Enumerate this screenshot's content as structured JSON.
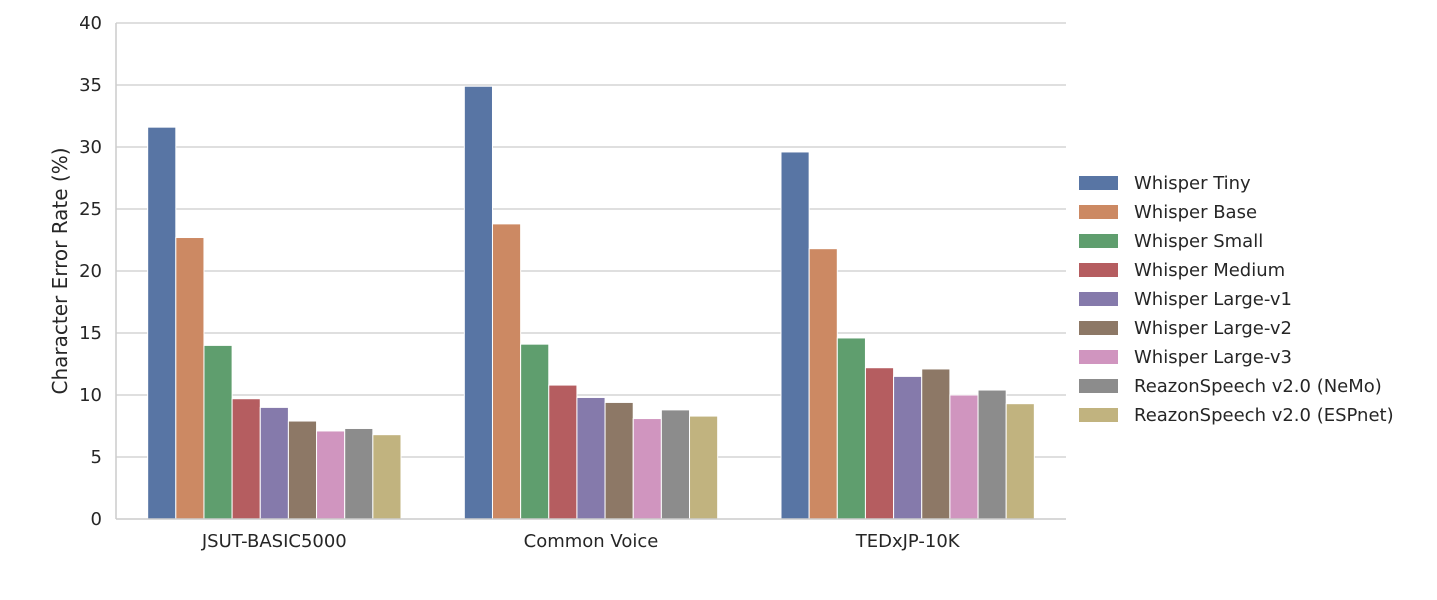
{
  "chart_data": {
    "type": "bar",
    "title": "",
    "xlabel": "",
    "ylabel": "Character Error Rate (%)",
    "ylim": [
      0,
      40
    ],
    "yticks": [
      0,
      5,
      10,
      15,
      20,
      25,
      30,
      35,
      40
    ],
    "grid": true,
    "legend_position": "right",
    "categories": [
      "JSUT-BASIC5000",
      "Common Voice",
      "TEDxJP-10K"
    ],
    "series": [
      {
        "name": "Whisper Tiny",
        "color": "#5875a4",
        "values": [
          31.6,
          34.9,
          29.6
        ]
      },
      {
        "name": "Whisper Base",
        "color": "#cc8963",
        "values": [
          22.7,
          23.8,
          21.8
        ]
      },
      {
        "name": "Whisper Small",
        "color": "#5f9e6e",
        "values": [
          14.0,
          14.1,
          14.6
        ]
      },
      {
        "name": "Whisper Medium",
        "color": "#b55d60",
        "values": [
          9.7,
          10.8,
          12.2
        ]
      },
      {
        "name": "Whisper Large-v1",
        "color": "#857aab",
        "values": [
          9.0,
          9.8,
          11.5
        ]
      },
      {
        "name": "Whisper Large-v2",
        "color": "#8d7866",
        "values": [
          7.9,
          9.4,
          12.1
        ]
      },
      {
        "name": "Whisper Large-v3",
        "color": "#d095bf",
        "values": [
          7.1,
          8.1,
          10.0
        ]
      },
      {
        "name": "ReazonSpeech v2.0 (NeMo)",
        "color": "#8c8c8c",
        "values": [
          7.3,
          8.8,
          10.4
        ]
      },
      {
        "name": "ReazonSpeech v2.0 (ESPnet)",
        "color": "#c1b37f",
        "values": [
          6.8,
          8.3,
          9.3
        ]
      }
    ]
  }
}
